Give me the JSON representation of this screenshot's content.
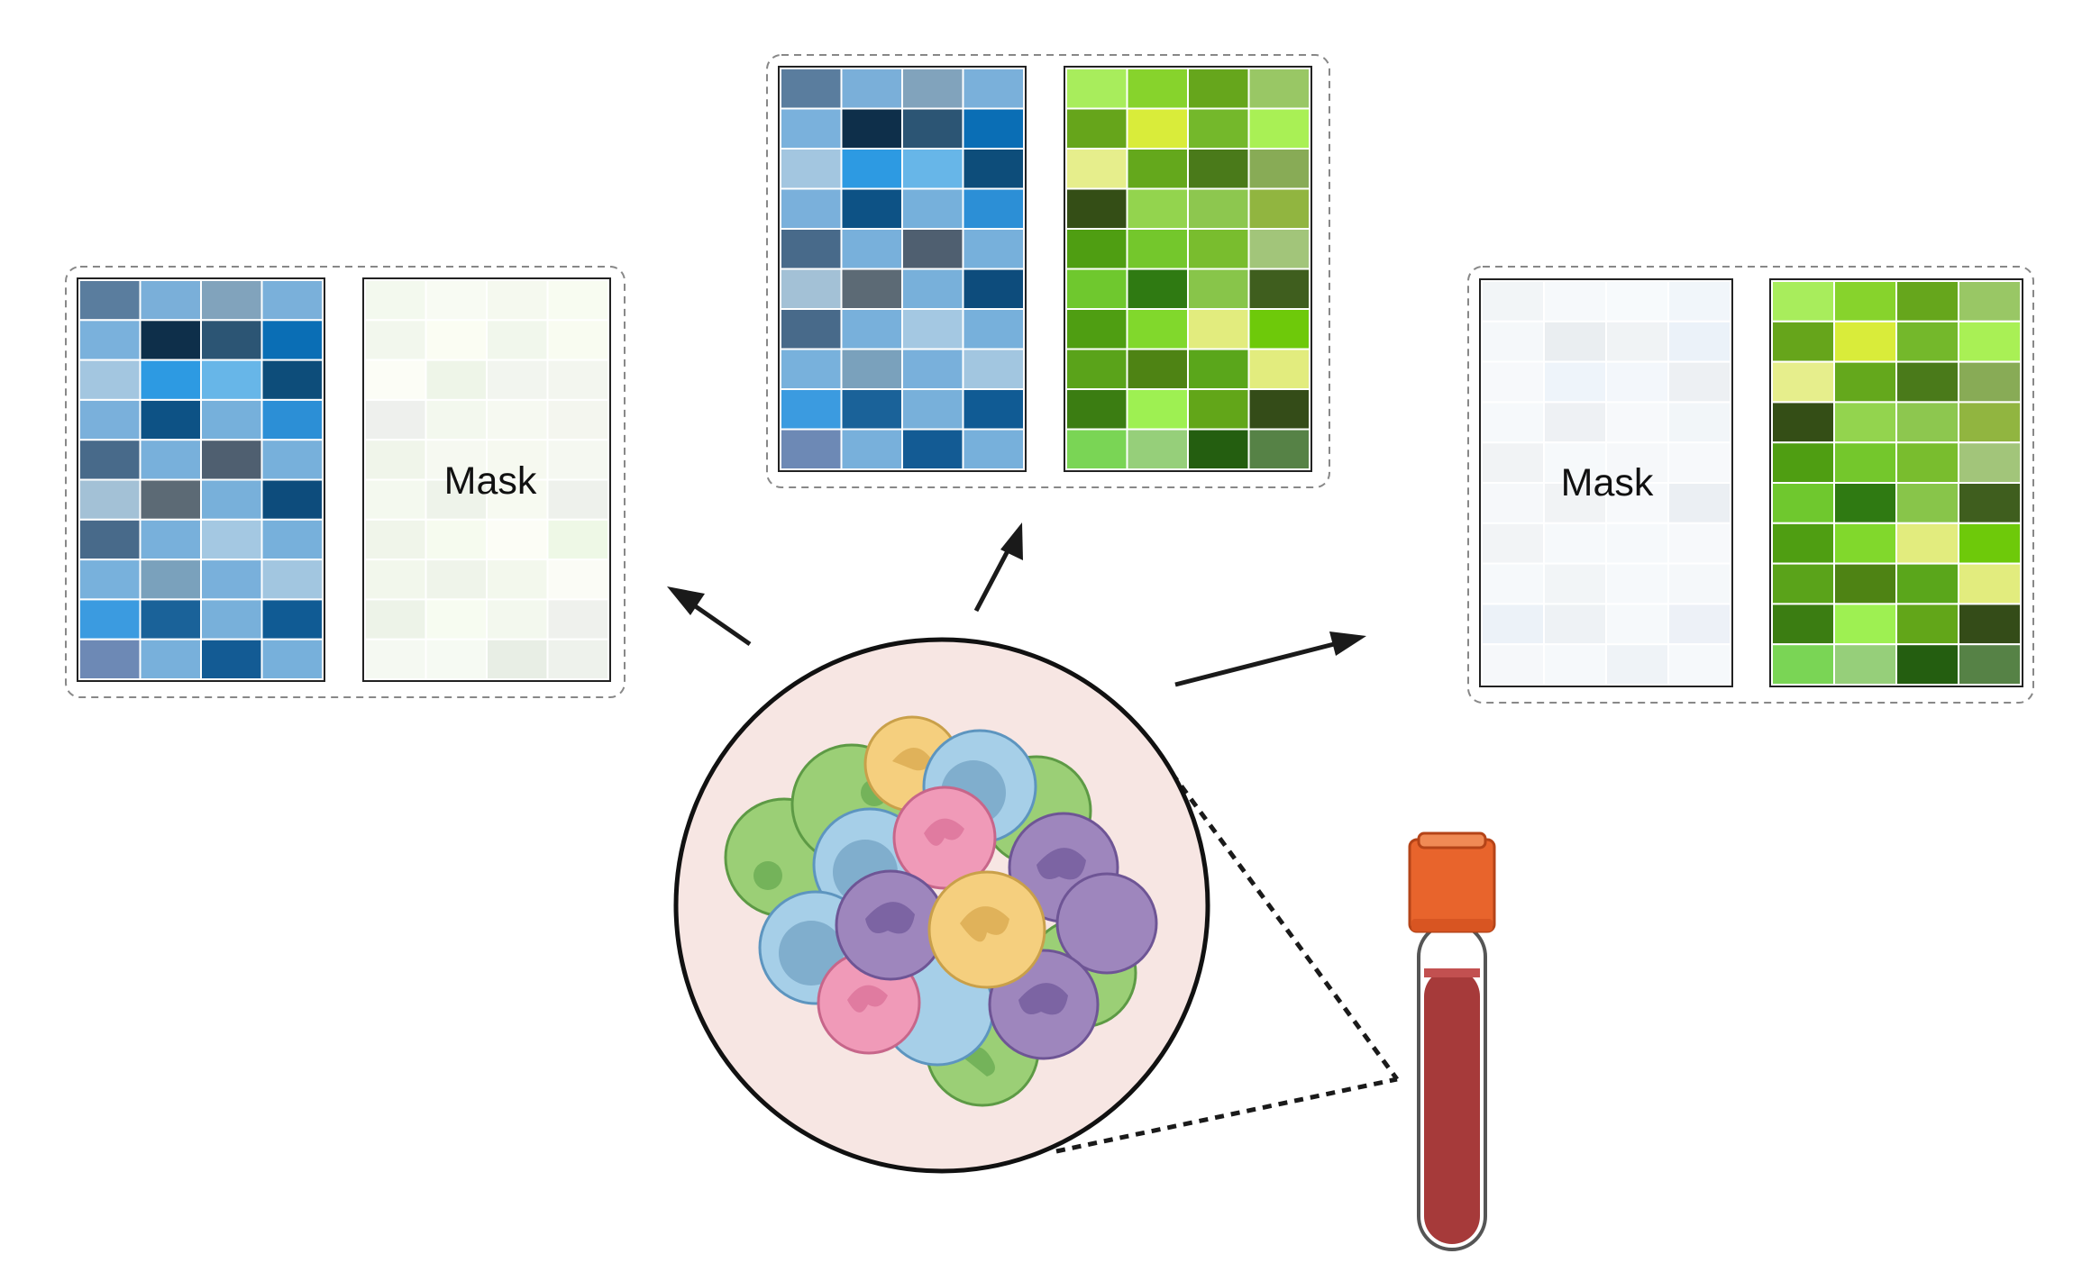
{
  "labels": {
    "mask_left": "Mask",
    "mask_right": "Mask"
  },
  "colors": {
    "dashed_border": "#888888",
    "arrow": "#1a1a1a",
    "inset_background": "#f7e6e3",
    "tube_cap": "#e8642c",
    "tube_blood": "#a63a3a",
    "cell_blue": "#a6cfe8",
    "cell_green": "#9bcf76",
    "cell_pink": "#f09ab8",
    "cell_yellow": "#f5cf7e",
    "cell_purple": "#9e86bd"
  },
  "matrices": {
    "blue": [
      [
        "#5a7d9e",
        "#7aafd9",
        "#81a3bc",
        "#7ab0da"
      ],
      [
        "#7ab1dc",
        "#0e2f4a",
        "#2c5574",
        "#0a6eb5"
      ],
      [
        "#a3c6e0",
        "#2d9ae2",
        "#67b6e8",
        "#0d4d7a"
      ],
      [
        "#7ab0db",
        "#0d5285",
        "#76b0db",
        "#2c8fd6"
      ],
      [
        "#486a8a",
        "#78b0db",
        "#4f5f70",
        "#77b0db"
      ],
      [
        "#a3c1d6",
        "#5c6a75",
        "#78b0da",
        "#0d4c7c"
      ],
      [
        "#486a8a",
        "#78b0db",
        "#a4c8e2",
        "#77b0db"
      ],
      [
        "#78b1dc",
        "#7aa1bc",
        "#79b0db",
        "#a2c6e0"
      ],
      [
        "#3b9be0",
        "#1a6299",
        "#78b0da",
        "#105b94"
      ],
      [
        "#6d89b5",
        "#78b0db",
        "#135b94",
        "#77b0db"
      ]
    ],
    "green": [
      [
        "#a8ed5c",
        "#87d32c",
        "#66a61c",
        "#99c765"
      ],
      [
        "#66a51b",
        "#d9ec3a",
        "#74b82b",
        "#a9f055"
      ],
      [
        "#e6ee8c",
        "#64a81c",
        "#4a7a1a",
        "#88ab56"
      ],
      [
        "#344e16",
        "#93d44e",
        "#8dc74f",
        "#91b540"
      ],
      [
        "#4f9e12",
        "#74c72c",
        "#79bd2e",
        "#a2c57a"
      ],
      [
        "#6fc82e",
        "#2f7a12",
        "#88c54a",
        "#3f5e1e"
      ],
      [
        "#4f9e12",
        "#81d82c",
        "#e2ec7e",
        "#6ec90a"
      ],
      [
        "#5aa31a",
        "#4e8314",
        "#5aa61b",
        "#e2ec7e"
      ],
      [
        "#3b7d12",
        "#9ef052",
        "#62a619",
        "#344c18"
      ],
      [
        "#7ad555",
        "#96cf7a",
        "#245e10",
        "#568246"
      ]
    ],
    "blue_mask": [
      [
        "#f2f5f7",
        "#f6f9fb",
        "#f7fafc",
        "#f1f6fa"
      ],
      [
        "#f5f8fa",
        "#eaeef1",
        "#f0f3f5",
        "#ebf2f9"
      ],
      [
        "#f7f9fb",
        "#eef4fa",
        "#f3f7fb",
        "#edf0f3"
      ],
      [
        "#f6f9fb",
        "#eef1f4",
        "#f7f9fb",
        "#f2f6f9"
      ],
      [
        "#f1f3f5",
        "#f6f9fb",
        "#f6f8fa",
        "#f7f9fb"
      ],
      [
        "#f6f8fa",
        "#f1f3f5",
        "#f7f9fb",
        "#ebeff3"
      ],
      [
        "#f2f4f6",
        "#f6f9fb",
        "#f6f9fb",
        "#f7f9fb"
      ],
      [
        "#f6f9fb",
        "#f2f5f7",
        "#f6f9fb",
        "#f5f8fa"
      ],
      [
        "#ecf2f8",
        "#eef2f5",
        "#f6f9fb",
        "#edf1f7"
      ],
      [
        "#f6f8fa",
        "#f6f9fb",
        "#eff3f7",
        "#f6f9fb"
      ]
    ],
    "green_mask": [
      [
        "#f3f9ee",
        "#f8fbf3",
        "#f5f9ef",
        "#f8fcf1"
      ],
      [
        "#f2f7ed",
        "#fbfdf3",
        "#f1f7ec",
        "#f9fcf1"
      ],
      [
        "#fcfdf6",
        "#eef5e8",
        "#f2f5ef",
        "#f3f6ef"
      ],
      [
        "#eef0ed",
        "#f3f8ee",
        "#f6f9f1",
        "#f4f6ef"
      ],
      [
        "#f0f5ea",
        "#f6f9f1",
        "#f6f9f0",
        "#f5f8f1"
      ],
      [
        "#f4f9ef",
        "#eef3ea",
        "#f7faf1",
        "#eef1ec"
      ],
      [
        "#f0f5ea",
        "#f6fbef",
        "#fcfdf6",
        "#eef8e6"
      ],
      [
        "#f2f7ec",
        "#eff4ea",
        "#f3f8ed",
        "#fbfcf6"
      ],
      [
        "#edf3e8",
        "#f7fcf1",
        "#f3f8ee",
        "#eff1ed"
      ],
      [
        "#f5f9f2",
        "#f6faf3",
        "#e8eee5",
        "#eef2ec"
      ]
    ]
  }
}
